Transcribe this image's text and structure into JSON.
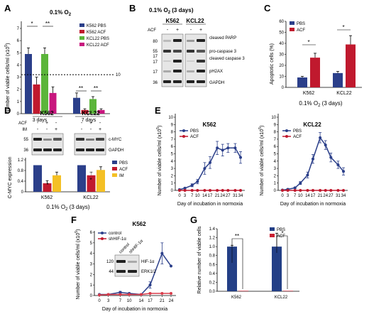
{
  "colors": {
    "blue": "#2b3f8a",
    "red": "#c0192e",
    "green": "#5bb53a",
    "magenta": "#c8177e",
    "yellow": "#f4c025",
    "navy": "#233f86",
    "crimson": "#c91f33",
    "lightred": "#d93b4a"
  },
  "panels": {
    "A": {
      "label": "A",
      "title": "0.1% O",
      "title_sub": "2",
      "ylabel": "Number of viable cells/ml (x10",
      "ylabel_sup": "5",
      "ylabel_end": ")",
      "threshold_label": "10",
      "legend": [
        "K562 PBS",
        "K562 ACF",
        "KCL22 PBS",
        "KCL22 ACF"
      ],
      "sig": [
        "*",
        "**",
        "**",
        "**"
      ]
    },
    "B": {
      "label": "B",
      "title": "0.1% O",
      "title_sub": "2",
      "title_end": " (3 days)",
      "cell_lines": [
        "K562",
        "KCL22"
      ],
      "acf_label": "ACF",
      "acf_signs": [
        "-",
        "+",
        "-",
        "+"
      ],
      "markers": [
        "80",
        "55",
        "17",
        "17",
        "17",
        "36"
      ],
      "bands": [
        "cleaved PARP",
        "pro-caspase 3",
        "cleaved caspase 3",
        "pH2AX",
        "GAPDH"
      ]
    },
    "C": {
      "label": "C",
      "ylabel": "Apoptotic cells (%)",
      "xlabel": "0.1% O",
      "xlabel_sub": "2",
      "xlabel_end": " (3 days)",
      "legend": [
        "PBS",
        "ACF"
      ],
      "sig": [
        "*",
        "*"
      ]
    },
    "D": {
      "label": "D",
      "cell_lines": [
        "K562",
        "KCL22"
      ],
      "row_labels": [
        "ACF",
        "IM"
      ],
      "acf_signs": [
        "-",
        "+",
        "-",
        "-",
        "+",
        "-"
      ],
      "im_signs": [
        "-",
        "-",
        "+",
        "-",
        "-",
        "+"
      ],
      "markers": [
        "55",
        "36"
      ],
      "bands": [
        "c-MYC",
        "GAPDH"
      ],
      "ylabel": "C-MYC expression",
      "xlabel": "0.1% O",
      "xlabel_sub": "2",
      "xlabel_end": " (3 days)",
      "legend": [
        "PBS",
        "ACF",
        "IM"
      ],
      "sig": [
        "#",
        "*",
        "#",
        "*"
      ]
    },
    "E": {
      "label": "E",
      "ylabel": "Number of viable cells/ml (x10",
      "ylabel_sup": "5",
      "ylabel_end": ")",
      "xlabel": "Day of incubation in normoxia",
      "legend": [
        "PBS",
        "ACF"
      ]
    },
    "F": {
      "label": "F",
      "ylabel": "Number of viable cells/ml (x10",
      "ylabel_sup": "5",
      "ylabel_end": ")",
      "xlabel": "Day of incubation in normoxia",
      "legend": [
        "control",
        "shHIF-1α"
      ],
      "inset_lanes": [
        "control",
        "shHIF-1α"
      ],
      "inset_markers": [
        "120",
        "44"
      ],
      "inset_bands": [
        "HIF-1α",
        "ERK1/2"
      ]
    },
    "G": {
      "label": "G",
      "ylabel": "Relative number of viable cells",
      "legend": [
        "PBS",
        "ACF"
      ],
      "sig": [
        "**",
        "*"
      ]
    }
  },
  "chart_data": [
    {
      "panel": "A",
      "type": "bar",
      "title": "0.1% O2",
      "categories": [
        "3 days",
        "7 days"
      ],
      "ylabel": "Number of viable cells/ml (x10^5)",
      "ylim": [
        0,
        7
      ],
      "yticks": [
        0,
        1,
        2,
        3,
        4,
        5,
        6,
        7
      ],
      "reference_line": 3.2,
      "series": [
        {
          "name": "K562 PBS",
          "values": [
            4.9,
            1.3
          ],
          "errors": [
            0.5,
            0.4
          ]
        },
        {
          "name": "K562 ACF",
          "values": [
            2.4,
            0.3
          ],
          "errors": [
            0.6,
            0.1
          ]
        },
        {
          "name": "KCL22 PBS",
          "values": [
            4.9,
            1.2
          ],
          "errors": [
            0.5,
            0.2
          ]
        },
        {
          "name": "KCL22 ACF",
          "values": [
            1.7,
            0.3
          ],
          "errors": [
            0.5,
            0.1
          ]
        }
      ]
    },
    {
      "panel": "C",
      "type": "bar",
      "categories": [
        "K562",
        "KCL22"
      ],
      "ylabel": "Apoptotic cells (%)",
      "xlabel": "0.1% O2 (3 days)",
      "ylim": [
        0,
        60
      ],
      "yticks": [
        0,
        10,
        20,
        30,
        40,
        50,
        60
      ],
      "series": [
        {
          "name": "PBS",
          "values": [
            9,
            13
          ],
          "errors": [
            1,
            1.5
          ]
        },
        {
          "name": "ACF",
          "values": [
            27,
            39
          ],
          "errors": [
            4,
            8
          ]
        }
      ]
    },
    {
      "panel": "D",
      "type": "bar",
      "categories": [
        "K562",
        "KCL22"
      ],
      "ylabel": "C-MYC expression",
      "xlabel": "0.1% O2 (3 days)",
      "ylim": [
        0,
        1.2
      ],
      "yticks": [
        0,
        0.4,
        0.8,
        1.2
      ],
      "series": [
        {
          "name": "PBS",
          "values": [
            1,
            1
          ],
          "errors": [
            0,
            0
          ]
        },
        {
          "name": "ACF",
          "values": [
            0.32,
            0.62
          ],
          "errors": [
            0.1,
            0.12
          ]
        },
        {
          "name": "IM",
          "values": [
            0.62,
            0.82
          ],
          "errors": [
            0.12,
            0.12
          ]
        }
      ]
    },
    {
      "panel": "E-K562",
      "type": "line",
      "title": "K562",
      "x": [
        0,
        3,
        7,
        10,
        14,
        17,
        21,
        24,
        27,
        31,
        34
      ],
      "xlabel": "Day of incubation in normoxia",
      "ylabel": "Number of viable cells/ml (x10^5)",
      "ylim": [
        0,
        10
      ],
      "yticks": [
        0,
        1,
        2,
        3,
        4,
        5,
        6,
        7,
        8,
        9,
        10
      ],
      "series": [
        {
          "name": "PBS",
          "values": [
            0.1,
            0.3,
            0.7,
            1.2,
            3.0,
            3.8,
            5.8,
            5.5,
            5.8,
            5.8,
            4.5
          ],
          "errors": [
            0.1,
            0.1,
            0.2,
            0.3,
            0.8,
            0.8,
            0.9,
            0.8,
            0.6,
            0.6,
            0.8
          ]
        },
        {
          "name": "ACF",
          "values": [
            0,
            0,
            0,
            0,
            0,
            0,
            0,
            0,
            0,
            0,
            0
          ]
        }
      ]
    },
    {
      "panel": "E-KCL22",
      "type": "line",
      "title": "KCL22",
      "x": [
        0,
        3,
        7,
        10,
        14,
        17,
        21,
        24,
        27,
        31,
        34
      ],
      "xlabel": "Day of incubation in normoxia",
      "ylabel": "Number of viable cells/ml (x10^5)",
      "ylim": [
        0,
        10
      ],
      "yticks": [
        0,
        1,
        2,
        3,
        4,
        5,
        6,
        7,
        8,
        9,
        10
      ],
      "series": [
        {
          "name": "PBS",
          "values": [
            0.05,
            0.15,
            0.35,
            1.0,
            2.1,
            4.3,
            7.2,
            6.2,
            4.5,
            3.5,
            2.6
          ],
          "errors": [
            0.05,
            0.1,
            0.1,
            0.2,
            0.4,
            0.6,
            0.7,
            0.6,
            0.6,
            0.5,
            0.5
          ]
        },
        {
          "name": "ACF",
          "values": [
            0,
            0,
            0,
            0,
            0,
            0,
            0,
            0,
            0,
            0,
            0
          ]
        }
      ]
    },
    {
      "panel": "F",
      "type": "line",
      "title": "K562",
      "x": [
        0,
        3,
        7,
        10,
        14,
        17,
        21,
        24
      ],
      "xlabel": "Day of incubation in normoxia",
      "ylabel": "Number of viable cells/ml (x10^5)",
      "ylim": [
        0,
        6
      ],
      "yticks": [
        0,
        1,
        2,
        3,
        4,
        5,
        6
      ],
      "series": [
        {
          "name": "control",
          "values": [
            0.1,
            0.1,
            0.3,
            0.2,
            0.1,
            1.0,
            4.0,
            2.8
          ],
          "errors": [
            0,
            0,
            0.1,
            0.05,
            0.05,
            0.3,
            1.0,
            0
          ]
        },
        {
          "name": "shHIF-1α",
          "values": [
            0.05,
            0.1,
            0.1,
            0.1,
            0.1,
            0.2,
            0.2,
            0.2
          ],
          "errors": [
            0,
            0,
            0,
            0,
            0,
            0,
            0,
            0
          ]
        }
      ]
    },
    {
      "panel": "G",
      "type": "bar",
      "categories": [
        "K562",
        "KCL22"
      ],
      "ylabel": "Relative number of viable cells",
      "ylim": [
        0,
        1.4
      ],
      "yticks": [
        0,
        0.2,
        0.4,
        0.6,
        0.8,
        1.0,
        1.2,
        1.4
      ],
      "series": [
        {
          "name": "PBS",
          "values": [
            1.0,
            1.0
          ],
          "errors": [
            0.03,
            0.3
          ]
        },
        {
          "name": "ACF",
          "values": [
            0.01,
            0.01
          ],
          "errors": [
            0,
            0
          ]
        }
      ]
    }
  ]
}
